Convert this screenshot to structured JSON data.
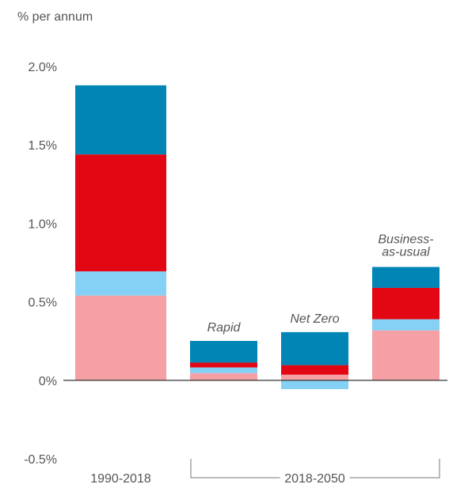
{
  "chart_data": {
    "type": "stacked_bar",
    "y_label": "% per annum",
    "categories": [
      null,
      "Rapid",
      "Net Zero",
      "Business-as-usual"
    ],
    "x_groups": [
      {
        "label": "1990-2018",
        "start": 0,
        "end": 0
      },
      {
        "label": "2018-2050",
        "start": 1,
        "end": 3
      }
    ],
    "series": [
      {
        "color": "#f4a0a5",
        "values": [
          0.54,
          0.046,
          0.036,
          0.318
        ]
      },
      {
        "color": "#85d0f5",
        "values": [
          0.154,
          0.036,
          -0.056,
          0.071
        ]
      },
      {
        "color": "#e30613",
        "values": [
          0.745,
          0.031,
          0.061,
          0.2
        ]
      },
      {
        "color": "#0085b5",
        "values": [
          0.44,
          0.138,
          0.21,
          0.133
        ]
      }
    ],
    "ylim": [
      -0.58,
      2.1
    ],
    "yticks": [
      {
        "value": -0.5,
        "label": "-0.5%"
      },
      {
        "value": 0,
        "label": "0%"
      },
      {
        "value": 0.5,
        "label": "0.5%"
      },
      {
        "value": 1,
        "label": "1.0%"
      },
      {
        "value": 1.5,
        "label": "1.5%"
      },
      {
        "value": 2,
        "label": "2.0%"
      }
    ],
    "grid": false
  }
}
